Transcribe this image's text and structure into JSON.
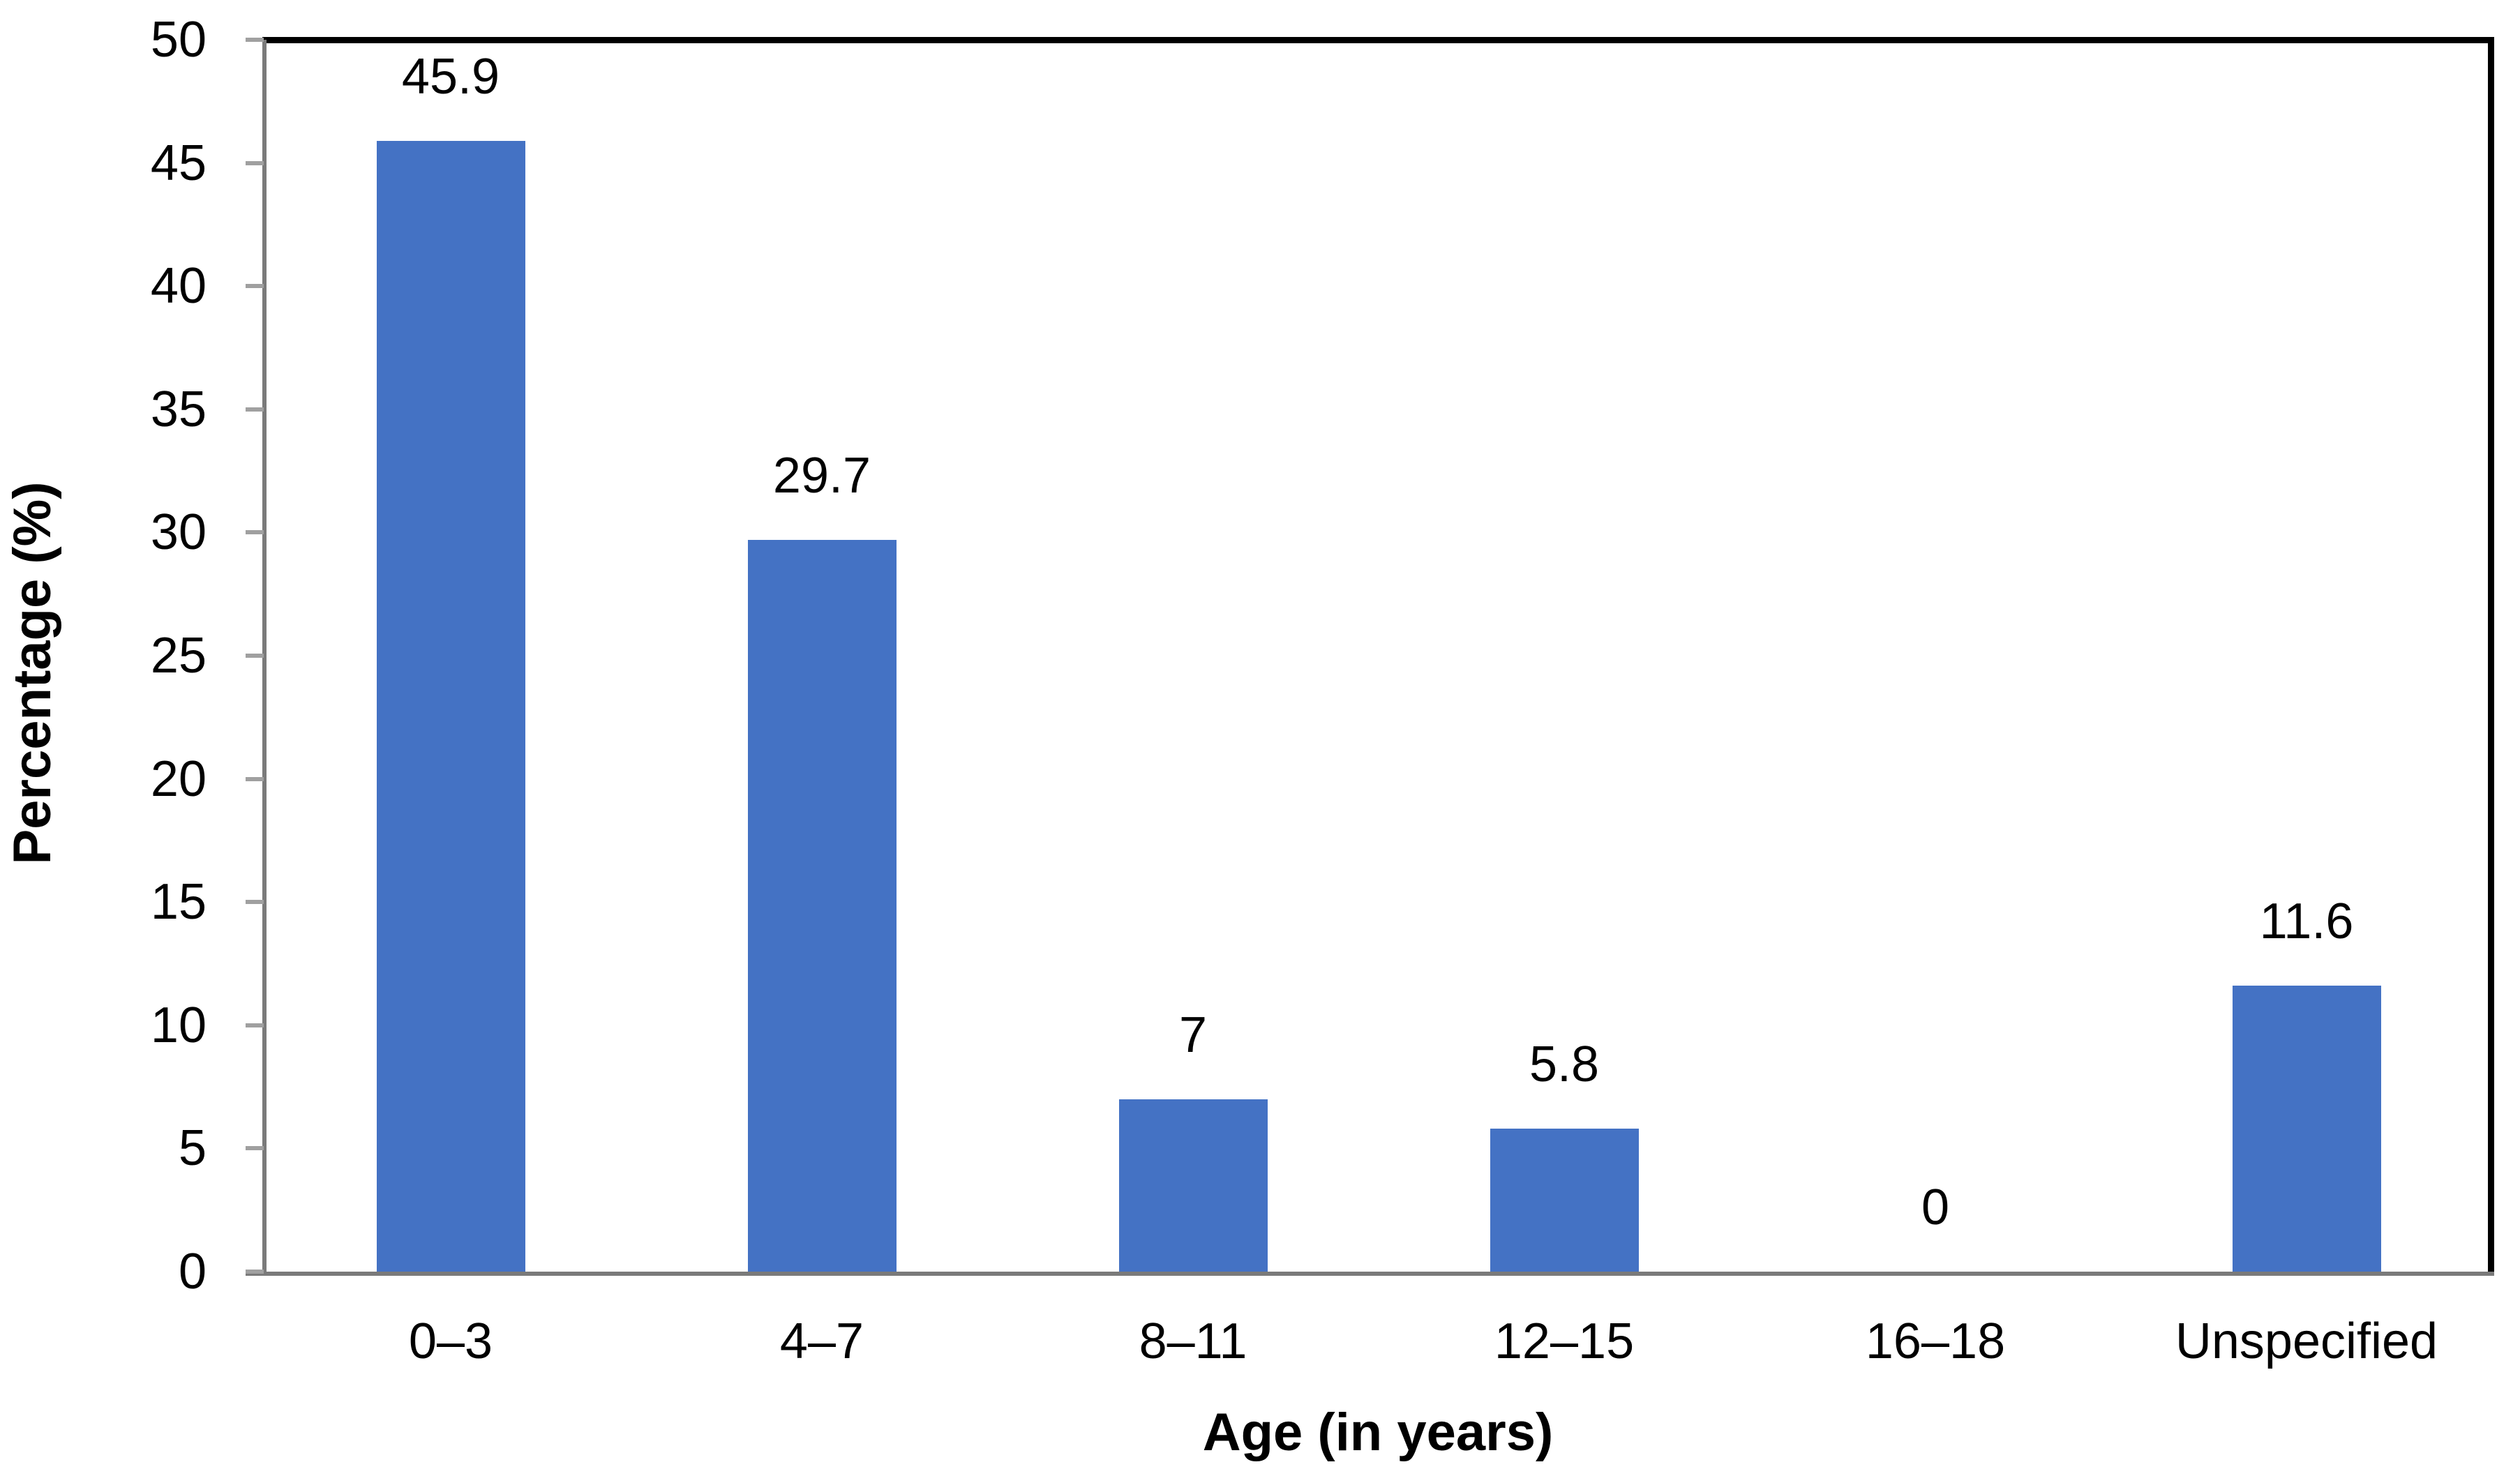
{
  "chart_data": {
    "type": "bar",
    "categories": [
      "0–3",
      "4–7",
      "8–11",
      "12–15",
      "16–18",
      "Unspecified"
    ],
    "values": [
      45.9,
      29.7,
      7,
      5.8,
      0,
      11.6
    ],
    "value_labels": [
      "45.9",
      "29.7",
      "7",
      "5.8",
      "0",
      "11.6"
    ],
    "title": "",
    "xlabel": "Age (in years)",
    "ylabel": "Percentage (%)",
    "ylim": [
      0,
      50
    ],
    "ytick_step": 5,
    "ytick_labels": [
      "0",
      "5",
      "10",
      "15",
      "20",
      "25",
      "30",
      "35",
      "40",
      "45",
      "50"
    ],
    "grid": false,
    "legend": false,
    "bar_color": "#4472C4",
    "axis_color": "#7a7a7a",
    "tick_color": "#a0a0a0",
    "plot_border_color": "#000000",
    "text_color": "#000000"
  }
}
